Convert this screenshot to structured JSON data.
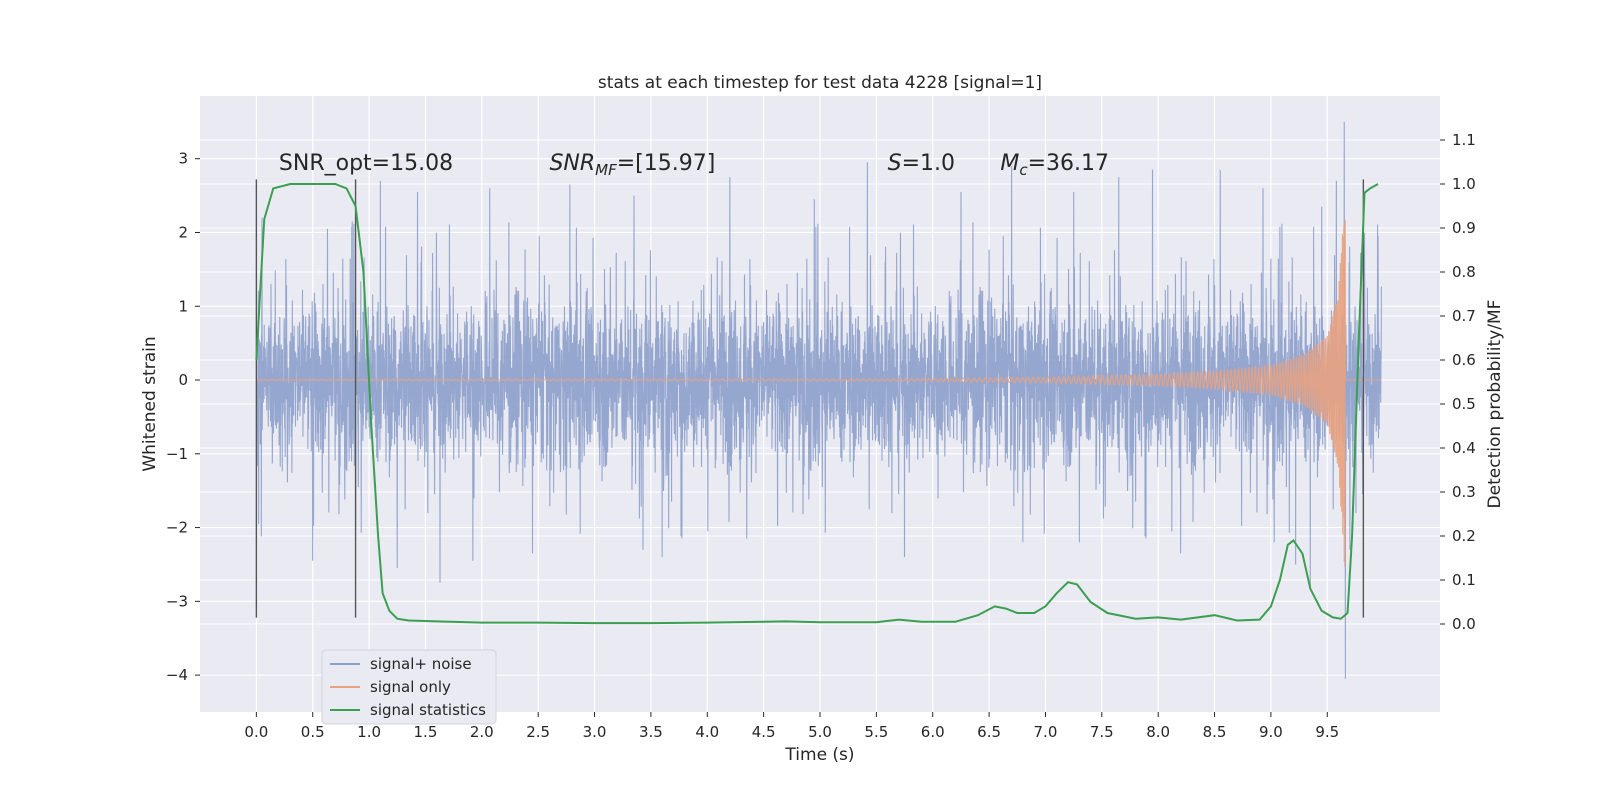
{
  "chart_data": {
    "type": "line",
    "title": "stats at each timestep for test data 4228 [signal=1]",
    "xlabel": "Time (s)",
    "ylabel": "Whitened strain",
    "y2label": "Detection probability/MF",
    "xlim": [
      -0.5,
      10.5
    ],
    "ylim": [
      -4.5,
      3.85
    ],
    "y2lim": [
      -0.2,
      1.2
    ],
    "x_ticks": [
      0.0,
      0.5,
      1.0,
      1.5,
      2.0,
      2.5,
      3.0,
      3.5,
      4.0,
      4.5,
      5.0,
      5.5,
      6.0,
      6.5,
      7.0,
      7.5,
      8.0,
      8.5,
      9.0,
      9.5
    ],
    "x_tick_labels": [
      "0.0",
      "0.5",
      "1.0",
      "1.5",
      "2.0",
      "2.5",
      "3.0",
      "3.5",
      "4.0",
      "4.5",
      "5.0",
      "5.5",
      "6.0",
      "6.5",
      "7.0",
      "7.5",
      "8.0",
      "8.5",
      "9.0",
      "9.5"
    ],
    "y_ticks": [
      -4,
      -3,
      -2,
      -1,
      0,
      1,
      2,
      3
    ],
    "y_tick_labels": [
      "−4",
      "−3",
      "−2",
      "−1",
      "0",
      "1",
      "2",
      "3"
    ],
    "y2_ticks": [
      0.0,
      0.1,
      0.2,
      0.3,
      0.4,
      0.5,
      0.6,
      0.7,
      0.8,
      0.9,
      1.0,
      1.1
    ],
    "y2_tick_labels": [
      "0.0",
      "0.1",
      "0.2",
      "0.3",
      "0.4",
      "0.5",
      "0.6",
      "0.7",
      "0.8",
      "0.9",
      "1.0",
      "1.1"
    ],
    "grid": true,
    "legend_position": "lower-left",
    "colors": {
      "noise": "#8da0cb",
      "signal": "#e8a27f",
      "statistics": "#3a9f50",
      "vline": "#555555",
      "background": "#eaeaf2",
      "grid": "#ffffff"
    },
    "series": [
      {
        "name": "signal+ noise",
        "axis": "left",
        "t_range": [
          0.0,
          9.98
        ],
        "envelope_abs": 1.3,
        "peaks": [
          {
            "t": 0.02,
            "v": -1.95
          },
          {
            "t": 0.05,
            "v": 2.2
          },
          {
            "t": 0.13,
            "v": 1.3
          },
          {
            "t": 0.5,
            "v": -2.45
          },
          {
            "t": 0.63,
            "v": 2.05
          },
          {
            "t": 0.85,
            "v": 2.15
          },
          {
            "t": 0.88,
            "v": -2.0
          },
          {
            "t": 1.1,
            "v": 2.7
          },
          {
            "t": 1.25,
            "v": -2.55
          },
          {
            "t": 1.43,
            "v": 2.55
          },
          {
            "t": 1.63,
            "v": -2.75
          },
          {
            "t": 1.92,
            "v": -2.45
          },
          {
            "t": 2.07,
            "v": 2.6
          },
          {
            "t": 2.45,
            "v": -2.35
          },
          {
            "t": 2.78,
            "v": 2.65
          },
          {
            "t": 3.35,
            "v": 2.5
          },
          {
            "t": 3.43,
            "v": -2.3
          },
          {
            "t": 3.6,
            "v": -2.4
          },
          {
            "t": 4.2,
            "v": 2.75
          },
          {
            "t": 4.35,
            "v": -2.15
          },
          {
            "t": 4.95,
            "v": 2.45
          },
          {
            "t": 5.42,
            "v": 2.95
          },
          {
            "t": 5.75,
            "v": -2.4
          },
          {
            "t": 6.25,
            "v": 2.55
          },
          {
            "t": 6.7,
            "v": 2.9
          },
          {
            "t": 6.8,
            "v": -2.2
          },
          {
            "t": 7.25,
            "v": 2.55
          },
          {
            "t": 7.3,
            "v": -2.2
          },
          {
            "t": 7.65,
            "v": 2.75
          },
          {
            "t": 7.95,
            "v": 2.85
          },
          {
            "t": 8.2,
            "v": -2.35
          },
          {
            "t": 8.55,
            "v": 2.85
          },
          {
            "t": 8.93,
            "v": 2.6
          },
          {
            "t": 9.03,
            "v": -2.2
          },
          {
            "t": 9.22,
            "v": -2.5
          },
          {
            "t": 9.35,
            "v": -2.8
          },
          {
            "t": 9.45,
            "v": 2.35
          },
          {
            "t": 9.58,
            "v": 2.7
          },
          {
            "t": 9.65,
            "v": 3.5
          },
          {
            "t": 9.66,
            "v": -4.05
          },
          {
            "t": 9.7,
            "v": -2.3
          },
          {
            "t": 9.95,
            "v": 1.95
          }
        ]
      },
      {
        "name": "signal only",
        "axis": "left",
        "t_range": [
          0.0,
          9.98
        ],
        "merger_t": 9.66,
        "amplitude_profile": [
          [
            0.0,
            0.005
          ],
          [
            5.0,
            0.01
          ],
          [
            6.0,
            0.02
          ],
          [
            7.0,
            0.04
          ],
          [
            8.0,
            0.08
          ],
          [
            8.5,
            0.12
          ],
          [
            9.0,
            0.2
          ],
          [
            9.3,
            0.35
          ],
          [
            9.5,
            0.6
          ],
          [
            9.6,
            1.2
          ],
          [
            9.66,
            2.7
          ]
        ]
      },
      {
        "name": "signal statistics",
        "axis": "right",
        "points": [
          [
            0.0,
            0.6
          ],
          [
            0.07,
            0.92
          ],
          [
            0.15,
            0.99
          ],
          [
            0.3,
            1.0
          ],
          [
            0.5,
            1.0
          ],
          [
            0.7,
            1.0
          ],
          [
            0.8,
            0.99
          ],
          [
            0.88,
            0.95
          ],
          [
            0.95,
            0.8
          ],
          [
            1.02,
            0.45
          ],
          [
            1.08,
            0.2
          ],
          [
            1.12,
            0.07
          ],
          [
            1.18,
            0.03
          ],
          [
            1.25,
            0.012
          ],
          [
            1.35,
            0.008
          ],
          [
            1.6,
            0.006
          ],
          [
            2.0,
            0.003
          ],
          [
            2.5,
            0.003
          ],
          [
            3.0,
            0.002
          ],
          [
            3.5,
            0.002
          ],
          [
            4.0,
            0.003
          ],
          [
            4.5,
            0.005
          ],
          [
            4.7,
            0.006
          ],
          [
            5.0,
            0.004
          ],
          [
            5.5,
            0.004
          ],
          [
            5.7,
            0.01
          ],
          [
            5.9,
            0.005
          ],
          [
            6.2,
            0.005
          ],
          [
            6.4,
            0.02
          ],
          [
            6.55,
            0.04
          ],
          [
            6.65,
            0.035
          ],
          [
            6.75,
            0.025
          ],
          [
            6.9,
            0.025
          ],
          [
            7.0,
            0.04
          ],
          [
            7.1,
            0.07
          ],
          [
            7.2,
            0.095
          ],
          [
            7.28,
            0.09
          ],
          [
            7.4,
            0.05
          ],
          [
            7.55,
            0.025
          ],
          [
            7.8,
            0.012
          ],
          [
            8.0,
            0.015
          ],
          [
            8.2,
            0.01
          ],
          [
            8.5,
            0.02
          ],
          [
            8.7,
            0.008
          ],
          [
            8.9,
            0.01
          ],
          [
            9.0,
            0.04
          ],
          [
            9.08,
            0.1
          ],
          [
            9.15,
            0.18
          ],
          [
            9.2,
            0.19
          ],
          [
            9.28,
            0.16
          ],
          [
            9.35,
            0.08
          ],
          [
            9.45,
            0.03
          ],
          [
            9.55,
            0.015
          ],
          [
            9.62,
            0.012
          ],
          [
            9.68,
            0.025
          ],
          [
            9.72,
            0.2
          ],
          [
            9.78,
            0.65
          ],
          [
            9.83,
            0.98
          ],
          [
            9.88,
            0.99
          ],
          [
            9.95,
            1.0
          ]
        ]
      }
    ],
    "vertical_lines": [
      {
        "x": 0.0,
        "y_from": -3.22,
        "y_to": 2.72
      },
      {
        "x": 0.88,
        "y_from": -3.22,
        "y_to": 2.72
      },
      {
        "x": 9.82,
        "y_from": -3.22,
        "y_to": 2.72
      }
    ],
    "annotations": [
      {
        "text": "SNR_opt=15.08",
        "x": 0.2,
        "y": 2.85
      },
      {
        "text": "SNR",
        "sub": "MF",
        "post": "=[15.97]",
        "x": 2.6,
        "y": 2.85
      },
      {
        "text": "S",
        "post": "=1.0",
        "x": 5.6,
        "y": 2.85
      },
      {
        "text": "M",
        "sub": "c",
        "post": "=36.17",
        "x": 6.6,
        "y": 2.85
      }
    ]
  }
}
